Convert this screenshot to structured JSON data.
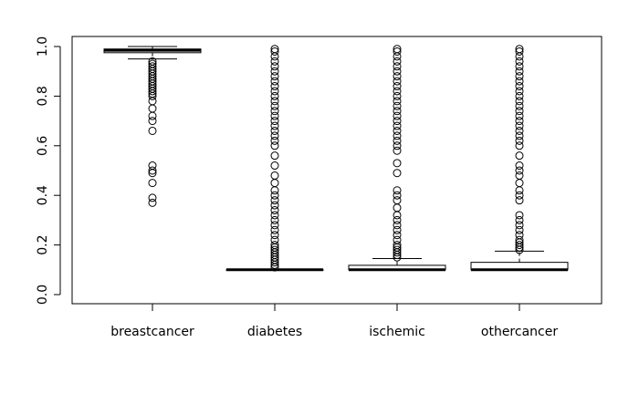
{
  "chart_data": {
    "type": "boxplot",
    "categories": [
      "breastcancer",
      "diabetes",
      "ischemic",
      "othercancer"
    ],
    "ylim": [
      0,
      1.0
    ],
    "y_ticks": [
      "0.0",
      "0.2",
      "0.4",
      "0.6",
      "0.8",
      "1.0"
    ],
    "y_tick_values": [
      0,
      0.2,
      0.4,
      0.6,
      0.8,
      1.0
    ],
    "grid": false,
    "colors": {
      "line": "#000000",
      "box_fill": "#ffffff",
      "background": "#ffffff"
    },
    "boxes": [
      {
        "name": "breastcancer",
        "whisker_low": 0.95,
        "q1": 0.975,
        "median": 0.985,
        "q3": 0.99,
        "whisker_high": 1.0,
        "outliers": [
          0.37,
          0.39,
          0.45,
          0.49,
          0.5,
          0.52,
          0.66,
          0.7,
          0.72,
          0.75,
          0.78,
          0.8,
          0.81,
          0.82,
          0.83,
          0.84,
          0.85,
          0.86,
          0.87,
          0.88,
          0.89,
          0.9,
          0.91,
          0.92,
          0.93,
          0.94
        ]
      },
      {
        "name": "diabetes",
        "whisker_low": 0.1,
        "q1": 0.1,
        "median": 0.1,
        "q3": 0.1,
        "whisker_high": 0.1,
        "outliers": [
          0.11,
          0.12,
          0.13,
          0.14,
          0.15,
          0.16,
          0.17,
          0.18,
          0.19,
          0.2,
          0.22,
          0.24,
          0.26,
          0.28,
          0.3,
          0.32,
          0.34,
          0.36,
          0.38,
          0.4,
          0.42,
          0.45,
          0.48,
          0.52,
          0.56,
          0.6,
          0.62,
          0.64,
          0.66,
          0.68,
          0.7,
          0.72,
          0.74,
          0.76,
          0.78,
          0.8,
          0.82,
          0.84,
          0.86,
          0.88,
          0.9,
          0.92,
          0.94,
          0.96,
          0.98,
          0.99
        ]
      },
      {
        "name": "ischemic",
        "whisker_low": 0.1,
        "q1": 0.1,
        "median": 0.1,
        "q3": 0.118,
        "whisker_high": 0.145,
        "outliers": [
          0.15,
          0.16,
          0.17,
          0.18,
          0.19,
          0.2,
          0.22,
          0.24,
          0.26,
          0.28,
          0.3,
          0.32,
          0.35,
          0.38,
          0.4,
          0.42,
          0.49,
          0.53,
          0.58,
          0.6,
          0.62,
          0.64,
          0.66,
          0.68,
          0.7,
          0.72,
          0.74,
          0.76,
          0.78,
          0.8,
          0.82,
          0.84,
          0.86,
          0.88,
          0.9,
          0.92,
          0.94,
          0.96,
          0.98,
          0.99
        ]
      },
      {
        "name": "othercancer",
        "whisker_low": 0.1,
        "q1": 0.1,
        "median": 0.1,
        "q3": 0.13,
        "whisker_high": 0.175,
        "outliers": [
          0.18,
          0.19,
          0.2,
          0.21,
          0.22,
          0.24,
          0.26,
          0.28,
          0.3,
          0.32,
          0.38,
          0.4,
          0.42,
          0.45,
          0.48,
          0.5,
          0.52,
          0.56,
          0.6,
          0.62,
          0.64,
          0.66,
          0.68,
          0.7,
          0.72,
          0.74,
          0.76,
          0.78,
          0.8,
          0.82,
          0.84,
          0.86,
          0.88,
          0.9,
          0.92,
          0.94,
          0.96,
          0.98,
          0.99
        ]
      }
    ]
  }
}
